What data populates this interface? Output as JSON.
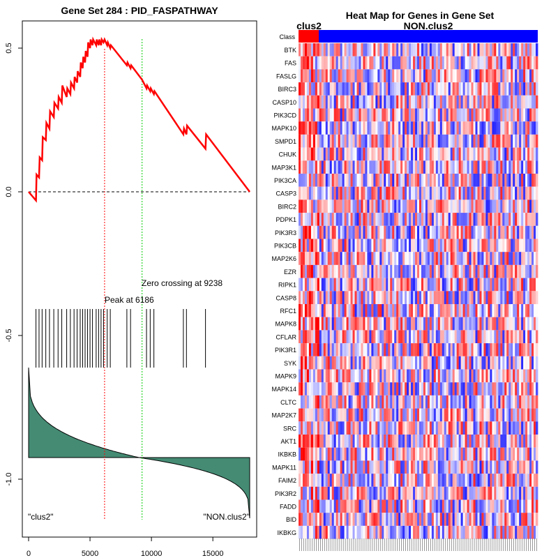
{
  "chart_data": [
    {
      "type": "line",
      "title": "Gene Set  284 : PID_FASPATHWAY",
      "xlabel": "",
      "ylabel": "",
      "xlim": [
        -1000,
        19000
      ],
      "ylim": [
        -1.15,
        0.6
      ],
      "x_ticks": [
        0,
        5000,
        10000,
        15000
      ],
      "x_tick_labels": [
        "0",
        "5000",
        "10000",
        "15000"
      ],
      "y_ticks": [
        0.5,
        0.0,
        -0.5,
        -1.0
      ],
      "y_tick_labels": [
        "0.5",
        "0.0",
        "-0.5",
        "-1.0"
      ],
      "series": [
        {
          "name": "Running enrichment score",
          "color": "#ff0000",
          "x": [
            0,
            600,
            650,
            850,
            900,
            1100,
            1150,
            1400,
            1450,
            1700,
            1750,
            2050,
            2100,
            2400,
            2450,
            2700,
            2750,
            3100,
            3150,
            3400,
            3450,
            3700,
            3750,
            3950,
            4000,
            4200,
            4250,
            4400,
            4450,
            4600,
            4650,
            4800,
            4850,
            5000,
            5050,
            5200,
            5250,
            5500,
            5550,
            5700,
            5750,
            5900,
            5950,
            6100,
            6186,
            6400,
            6450,
            6650,
            6700,
            8000,
            8050,
            8300,
            8350,
            9238,
            9600,
            9650,
            9900,
            9950,
            10200,
            10250,
            12600,
            12650,
            12850,
            12900,
            14400,
            14450,
            18000
          ],
          "y": [
            0.0,
            -0.03,
            0.06,
            0.05,
            0.12,
            0.11,
            0.19,
            0.18,
            0.24,
            0.22,
            0.28,
            0.26,
            0.31,
            0.29,
            0.33,
            0.31,
            0.37,
            0.33,
            0.36,
            0.34,
            0.38,
            0.36,
            0.4,
            0.38,
            0.42,
            0.4,
            0.45,
            0.43,
            0.47,
            0.45,
            0.49,
            0.47,
            0.52,
            0.5,
            0.53,
            0.51,
            0.53,
            0.51,
            0.53,
            0.51,
            0.53,
            0.51,
            0.53,
            0.52,
            0.53,
            0.51,
            0.52,
            0.5,
            0.51,
            0.44,
            0.45,
            0.43,
            0.44,
            0.39,
            0.36,
            0.37,
            0.35,
            0.36,
            0.34,
            0.35,
            0.2,
            0.22,
            0.2,
            0.23,
            0.15,
            0.2,
            0.0
          ]
        }
      ],
      "hits": [
        600,
        850,
        1100,
        1400,
        1700,
        2050,
        2400,
        2700,
        3100,
        3400,
        3700,
        3950,
        4200,
        4400,
        4600,
        4800,
        5000,
        5200,
        5500,
        5700,
        5900,
        6100,
        6400,
        6650,
        8000,
        8300,
        9600,
        9900,
        10200,
        12600,
        12850,
        14400
      ],
      "peak_x": 6186,
      "zero_crossing_x": 9238,
      "annotations": {
        "peak_label": "Peak at 6186",
        "zero_label": "Zero crossing at 9238",
        "left_label": "\"clus2\"",
        "right_label": "\"NON.clus2\""
      }
    },
    {
      "type": "heatmap",
      "title": "Heat Map for Genes in Gene Set",
      "class_row_label": "Class",
      "class_labels": [
        "clus2",
        "NON.clus2"
      ],
      "class_colors": [
        "#ff0000",
        "#0000ff"
      ],
      "rows": [
        "BTK",
        "FAS",
        "FASLG",
        "BIRC3",
        "CASP10",
        "PIK3CD",
        "MAPK10",
        "SMPD1",
        "CHUK",
        "MAP3K1",
        "PIK3CA",
        "CASP3",
        "BIRC2",
        "PDPK1",
        "PIK3R3",
        "PIK3CB",
        "MAP2K6",
        "EZR",
        "RIPK1",
        "CASP8",
        "RFC1",
        "MAPK8",
        "CFLAR",
        "PIK3R1",
        "SYK",
        "MAPK9",
        "MAPK14",
        "CLTC",
        "MAP2K7",
        "SRC",
        "AKT1",
        "IKBKB",
        "MAPK11",
        "FAIM2",
        "PIK3R2",
        "FADD",
        "BID",
        "IKBKG"
      ]
    }
  ]
}
